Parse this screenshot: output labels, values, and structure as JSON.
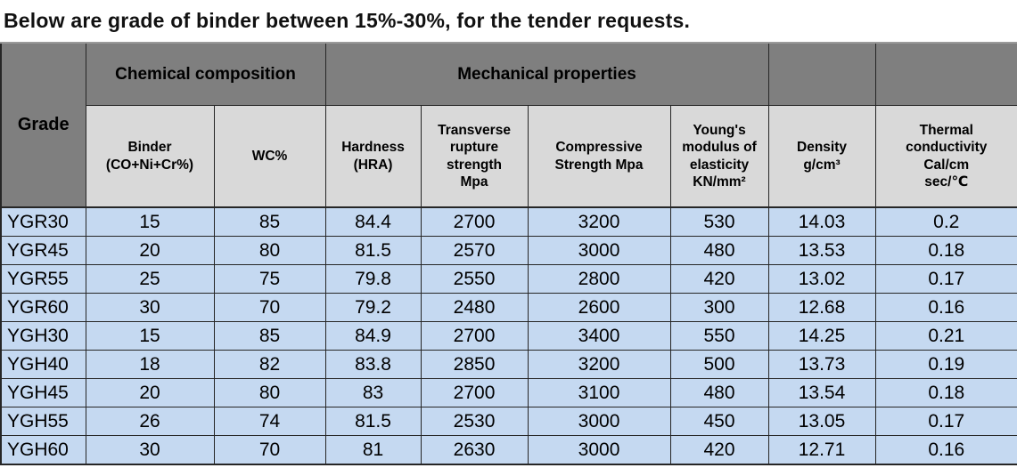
{
  "title": "Below are grade of binder between 15%-30%, for the tender requests.",
  "colors": {
    "header_dark": "#7f7f7f",
    "header_light": "#d9d9d9",
    "row_blue": "#c5d9f1",
    "border": "#262626",
    "text": "#000000",
    "background": "#ffffff"
  },
  "table": {
    "group_headers": {
      "grade": "Grade",
      "chemical": "Chemical composition",
      "mechanical": "Mechanical properties",
      "spacer_density": "",
      "spacer_thermal": ""
    },
    "columns": [
      "Binder\n(CO+Ni+Cr%)",
      "WC%",
      "Hardness\n(HRA)",
      "Transverse\nrupture\nstrength\nMpa",
      "Compressive\nStrength Mpa",
      "Young's\nmodulus of\nelasticity\nKN/mm²",
      "Density\ng/cm³",
      "Thermal\nconductivity\nCal/cm\nsec/℃"
    ],
    "rows": [
      [
        "YGR30",
        "15",
        "85",
        "84.4",
        "2700",
        "3200",
        "530",
        "14.03",
        "0.2"
      ],
      [
        "YGR45",
        "20",
        "80",
        "81.5",
        "2570",
        "3000",
        "480",
        "13.53",
        "0.18"
      ],
      [
        "YGR55",
        "25",
        "75",
        "79.8",
        "2550",
        "2800",
        "420",
        "13.02",
        "0.17"
      ],
      [
        "YGR60",
        "30",
        "70",
        "79.2",
        "2480",
        "2600",
        "300",
        "12.68",
        "0.16"
      ],
      [
        "YGH30",
        "15",
        "85",
        "84.9",
        "2700",
        "3400",
        "550",
        "14.25",
        "0.21"
      ],
      [
        "YGH40",
        "18",
        "82",
        "83.8",
        "2850",
        "3200",
        "500",
        "13.73",
        "0.19"
      ],
      [
        "YGH45",
        "20",
        "80",
        "83",
        "2700",
        "3100",
        "480",
        "13.54",
        "0.18"
      ],
      [
        "YGH55",
        "26",
        "74",
        "81.5",
        "2530",
        "3000",
        "450",
        "13.05",
        "0.17"
      ],
      [
        "YGH60",
        "30",
        "70",
        "81",
        "2630",
        "3000",
        "420",
        "12.71",
        "0.16"
      ]
    ]
  }
}
